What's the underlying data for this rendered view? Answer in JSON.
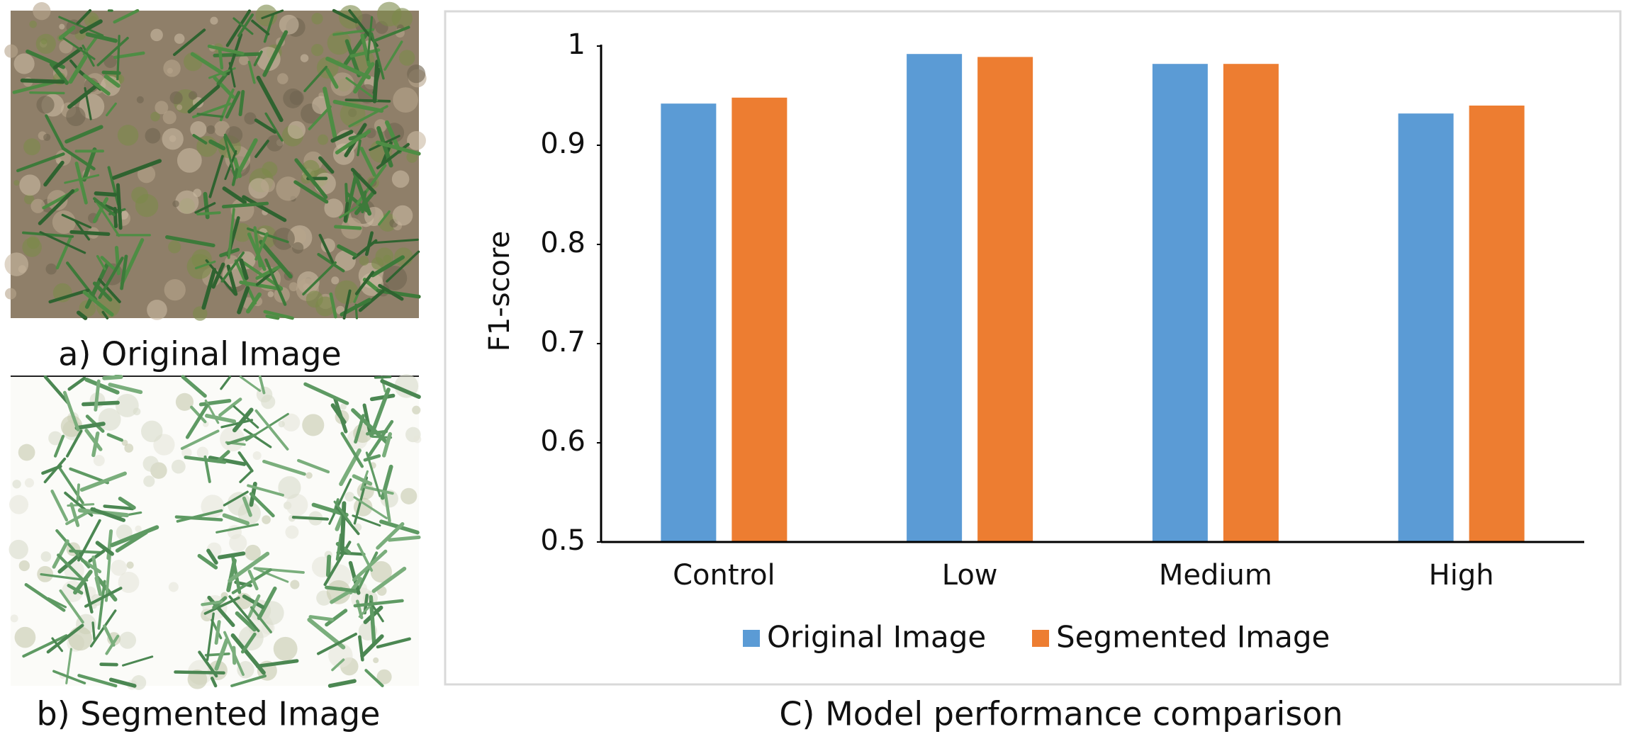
{
  "panels": {
    "a": {
      "caption": "a) Original Image"
    },
    "b": {
      "caption": "b) Segmented Image"
    }
  },
  "chart_data": {
    "type": "bar",
    "caption": "C) Model performance comparison",
    "y_label": "F1-score",
    "categories": [
      "Control",
      "Low",
      "Medium",
      "High"
    ],
    "series": [
      {
        "name": "Original Image",
        "color": "#5b9bd5",
        "values": [
          0.942,
          0.992,
          0.982,
          0.932
        ]
      },
      {
        "name": "Segmented Image",
        "color": "#ed7d31",
        "values": [
          0.948,
          0.989,
          0.982,
          0.94
        ]
      }
    ],
    "ylim": [
      0.5,
      1
    ],
    "yticks": [
      0.5,
      0.6,
      0.7,
      0.8,
      0.9,
      1
    ],
    "legend": "bottom"
  }
}
